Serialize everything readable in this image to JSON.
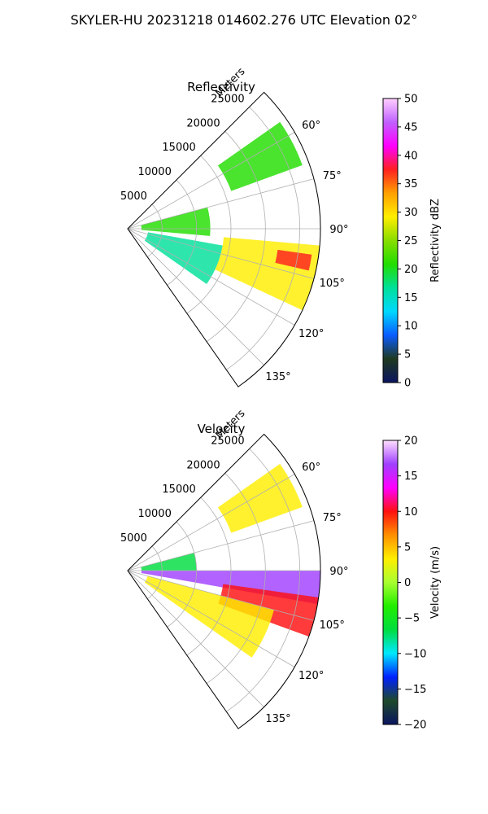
{
  "figure": {
    "suptitle": "SKYLER-HU  20231218  014602.276 UTC Elevation 02°"
  },
  "chart_data": [
    {
      "type": "heatmap",
      "projection": "polar-sector",
      "title": "Reflectivity",
      "radial_label": "Meters",
      "radial_ticks": [
        "5000",
        "10000",
        "15000",
        "20000",
        "25000"
      ],
      "radial_tick_values": [
        5000,
        10000,
        15000,
        20000,
        25000
      ],
      "rlim": [
        0,
        28000
      ],
      "azimuth_ticks": [
        "60°",
        "75°",
        "90°",
        "105°",
        "120°",
        "135°"
      ],
      "azimuth_tick_values": [
        60,
        75,
        90,
        105,
        120,
        135
      ],
      "azimuth_range": [
        45,
        145
      ],
      "grid": true,
      "colorbar": {
        "label": "Reflectivity dBZ",
        "ticks": [
          "0",
          "5",
          "10",
          "15",
          "20",
          "25",
          "30",
          "35",
          "40",
          "45",
          "50"
        ],
        "range": [
          0,
          50
        ],
        "stops": [
          "#0b1560",
          "#1f3a1f",
          "#0a5cff",
          "#00d8ff",
          "#00e09a",
          "#22dd00",
          "#88dd00",
          "#ffee00",
          "#ffa000",
          "#ff2020",
          "#ff00ff",
          "#c060ff",
          "#ffd0ff"
        ]
      },
      "echo_regions": [
        {
          "az_start": 55,
          "az_end": 70,
          "r_min": 16000,
          "r_max": 27000,
          "value": 20
        },
        {
          "az_start": 75,
          "az_end": 95,
          "r_min": 2000,
          "r_max": 12000,
          "value": 22
        },
        {
          "az_start": 95,
          "az_end": 115,
          "r_min": 14000,
          "r_max": 28000,
          "value": 30
        },
        {
          "az_start": 98,
          "az_end": 103,
          "r_min": 22000,
          "r_max": 27000,
          "value": 36
        },
        {
          "az_start": 100,
          "az_end": 125,
          "r_min": 3000,
          "r_max": 14000,
          "value": 18
        }
      ]
    },
    {
      "type": "heatmap",
      "projection": "polar-sector",
      "title": "Velocity",
      "radial_label": "Meters",
      "radial_ticks": [
        "5000",
        "10000",
        "15000",
        "20000",
        "25000"
      ],
      "radial_tick_values": [
        5000,
        10000,
        15000,
        20000,
        25000
      ],
      "rlim": [
        0,
        28000
      ],
      "azimuth_ticks": [
        "60°",
        "75°",
        "90°",
        "105°",
        "120°",
        "135°"
      ],
      "azimuth_tick_values": [
        60,
        75,
        90,
        105,
        120,
        135
      ],
      "azimuth_range": [
        45,
        145
      ],
      "grid": true,
      "colorbar": {
        "label": "Velocity (m/s)",
        "ticks": [
          "−20",
          "−15",
          "−10",
          "−5",
          "0",
          "5",
          "10",
          "15",
          "20"
        ],
        "range": [
          -20,
          20
        ],
        "stops": [
          "#0b1560",
          "#1f4a2a",
          "#0020ff",
          "#00e8ff",
          "#00dd40",
          "#22ee00",
          "#a8ff30",
          "#ffee00",
          "#ff9000",
          "#ff1010",
          "#ff00ff",
          "#a040ff",
          "#ffe0ff"
        ]
      },
      "echo_regions": [
        {
          "az_start": 55,
          "az_end": 70,
          "r_min": 16000,
          "r_max": 27000,
          "value": 2
        },
        {
          "az_start": 75,
          "az_end": 90,
          "r_min": 2000,
          "r_max": 10000,
          "value": -6
        },
        {
          "az_start": 90,
          "az_end": 100,
          "r_min": 2000,
          "r_max": 28000,
          "value": 14
        },
        {
          "az_start": 98,
          "az_end": 110,
          "r_min": 14000,
          "r_max": 28000,
          "value": 10
        },
        {
          "az_start": 105,
          "az_end": 125,
          "r_min": 3000,
          "r_max": 22000,
          "value": 3
        }
      ]
    }
  ]
}
